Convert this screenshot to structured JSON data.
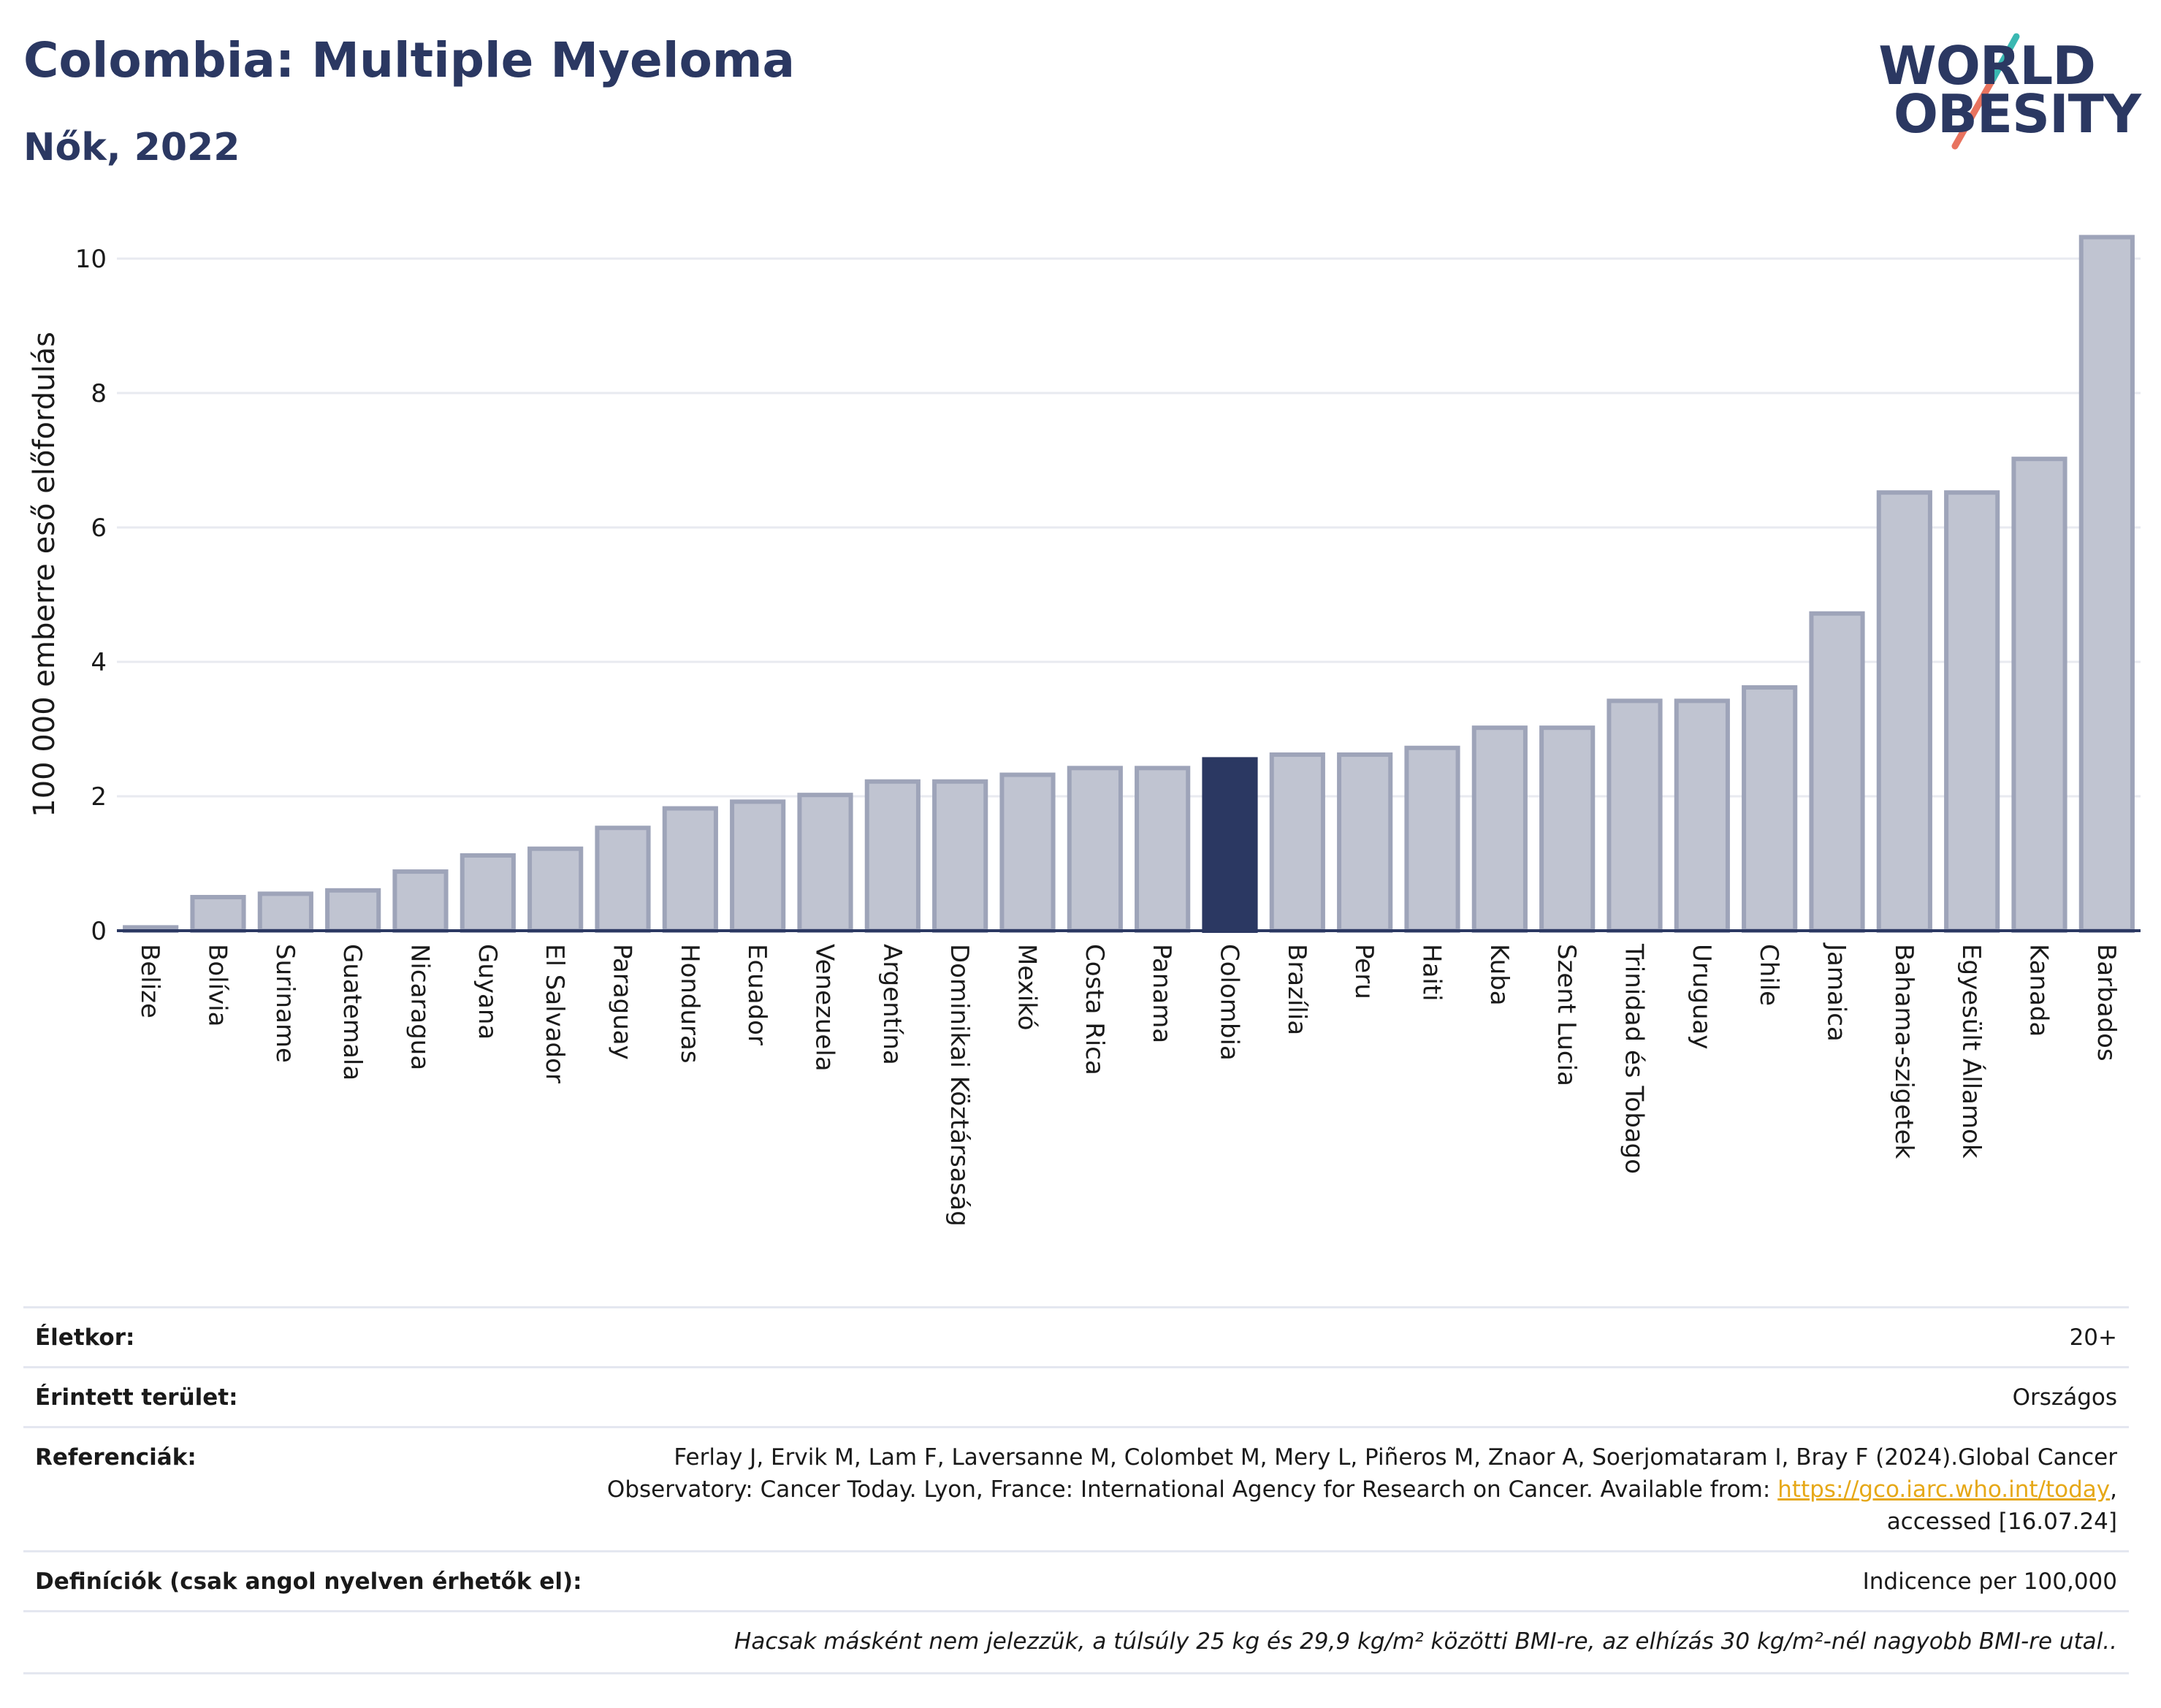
{
  "header": {
    "title": "Colombia: Multiple Myeloma",
    "subtitle": "Nők, 2022",
    "logo_line1": "WORLD",
    "logo_line2": "OBESITY"
  },
  "chart_data": {
    "type": "bar",
    "title": "Colombia: Multiple Myeloma",
    "subtitle": "Nők, 2022",
    "ylabel": "100 000 emberre eső előfordulás",
    "xlabel": "",
    "ylim": [
      0,
      10.6
    ],
    "yticks": [
      0,
      2,
      4,
      6,
      8,
      10
    ],
    "grid": true,
    "highlight": "Colombia",
    "colors": {
      "bar": "#c0c4d1",
      "bar_border": "#9ea4b9",
      "highlight": "#2b3862",
      "grid": "#e8eaf0",
      "axis": "#2b3862"
    },
    "categories": [
      "Belize",
      "Bolívia",
      "Suriname",
      "Guatemala",
      "Nicaragua",
      "Guyana",
      "El Salvador",
      "Paraguay",
      "Honduras",
      "Ecuador",
      "Venezuela",
      "Argentína",
      "Dominikai Köztársaság",
      "Mexikó",
      "Costa Rica",
      "Panama",
      "Colombia",
      "Brazília",
      "Peru",
      "Haiti",
      "Kuba",
      "Szent Lucia",
      "Trinidad és Tobago",
      "Uruguay",
      "Chile",
      "Jamaica",
      "Bahama-szigetek",
      "Egyesült Államok",
      "Kanada",
      "Barbados"
    ],
    "values": [
      0.05,
      0.5,
      0.55,
      0.6,
      0.88,
      1.12,
      1.22,
      1.53,
      1.82,
      1.92,
      2.02,
      2.22,
      2.22,
      2.32,
      2.42,
      2.42,
      2.55,
      2.62,
      2.62,
      2.72,
      3.02,
      3.02,
      3.42,
      3.42,
      3.62,
      4.72,
      6.52,
      6.52,
      7.02,
      10.32
    ]
  },
  "info": {
    "age_label": "Életkor:",
    "age_value": "20+",
    "area_label": "Érintett terület:",
    "area_value": "Országos",
    "ref_label": "Referenciák:",
    "ref_line1": "Ferlay J, Ervik M, Lam F, Laversanne M, Colombet M, Mery L, Piñeros M, Znaor A, Soerjomataram I, Bray F (2024).Global Cancer",
    "ref_line2_pre": "Observatory: Cancer Today. Lyon, France: International Agency for Research on Cancer. Available from: ",
    "ref_link": "https://gco.iarc.who.int/today",
    "ref_line2_post": ",",
    "ref_line3": "accessed [16.07.24]",
    "def_label": "Definíciók (csak angol nyelven érhetők el):",
    "def_value": "Indicence per 100,000",
    "note": "Hacsak másként nem jelezzük, a túlsúly 25 kg és 29,9 kg/m² közötti BMI-re, az elhízás 30 kg/m²-nél nagyobb BMI-re utal.."
  }
}
